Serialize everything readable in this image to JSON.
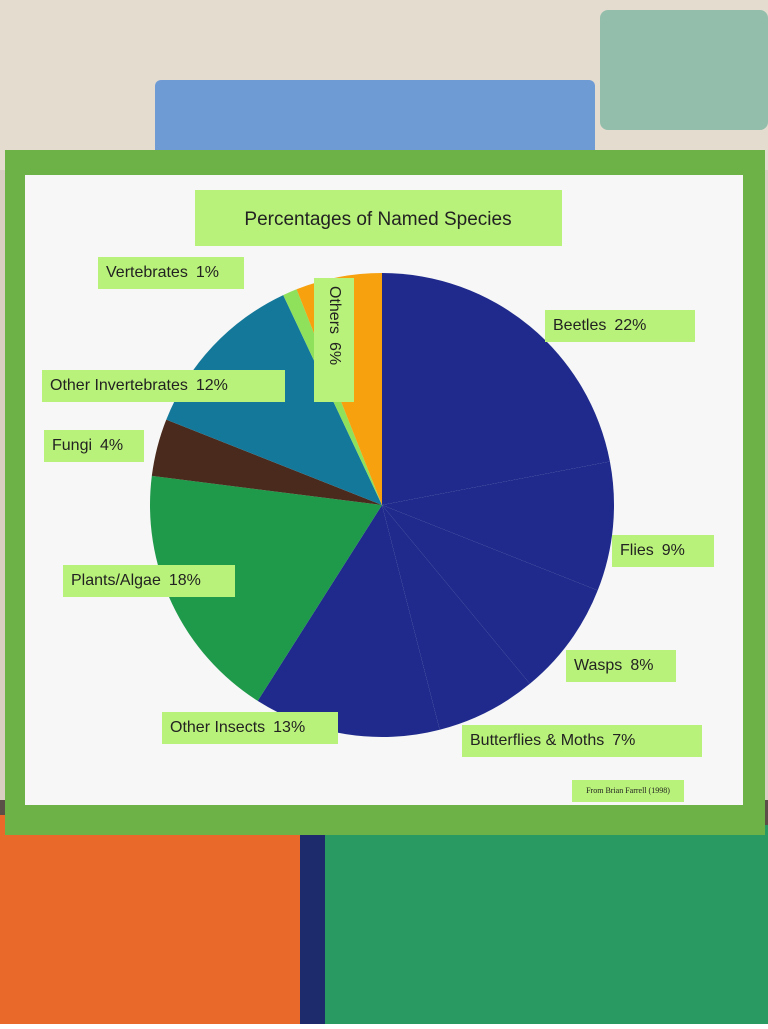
{
  "chart_data": {
    "type": "pie",
    "title": "Percentages of Named Species",
    "categories": [
      "Beetles",
      "Flies",
      "Wasps",
      "Butterflies & Moths",
      "Other Insects",
      "Plants/Algae",
      "Fungi",
      "Other Invertebrates",
      "Vertebrates",
      "Others"
    ],
    "values": [
      22,
      9,
      8,
      7,
      13,
      18,
      4,
      12,
      1,
      6
    ],
    "value_labels": [
      "22%",
      "9%",
      "8%",
      "7%",
      "13%",
      "18%",
      "4%",
      "12%",
      "1%",
      "6%"
    ],
    "colors": [
      "#1f2a8c",
      "#1f2a8c",
      "#1f2a8c",
      "#1f2a8c",
      "#1f2a8c",
      "#1e9a4a",
      "#4a2a1c",
      "#13789a",
      "#8fe05a",
      "#f7a10f"
    ],
    "source": "From Brian Farrell (1998)"
  }
}
